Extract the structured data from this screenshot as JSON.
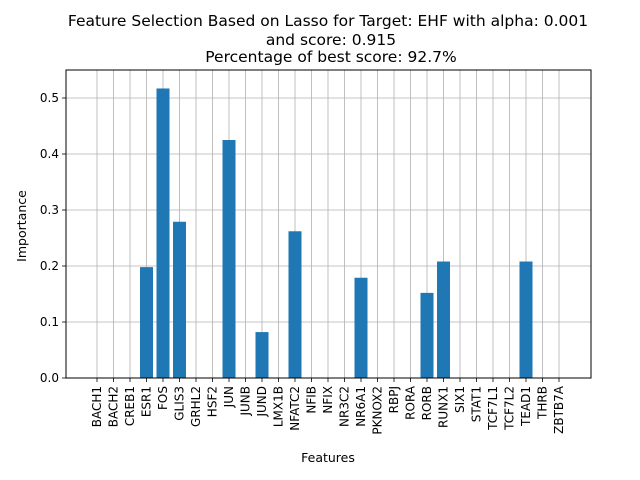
{
  "chart_data": {
    "type": "bar",
    "title": [
      "Feature Selection Based on Lasso for Target: EHF with alpha: 0.001",
      "and score: 0.915",
      "Percentage of best score: 92.7%"
    ],
    "xlabel": "Features",
    "ylabel": "Importance",
    "ylim": [
      0,
      0.55
    ],
    "yticks": [
      "0.0",
      "0.1",
      "0.2",
      "0.3",
      "0.4",
      "0.5"
    ],
    "grid": true,
    "bar_color": "#1f77b4",
    "categories": [
      "BACH1",
      "BACH2",
      "CREB1",
      "ESR1",
      "FOS",
      "GLIS3",
      "GRHL2",
      "HSF2",
      "JUN",
      "JUNB",
      "JUND",
      "LMX1B",
      "NFATC2",
      "NFIB",
      "NFIX",
      "NR3C2",
      "NR6A1",
      "PKNOX2",
      "RBPJ",
      "RORA",
      "RORB",
      "RUNX1",
      "SIX1",
      "STAT1",
      "TCF7L1",
      "TCF7L2",
      "TEAD1",
      "THRB",
      "ZBTB7A"
    ],
    "values": [
      0,
      0,
      0,
      0.198,
      0.517,
      0.279,
      0,
      0,
      0.425,
      0,
      0.082,
      0,
      0.262,
      0,
      0,
      0,
      0.179,
      0,
      0,
      0,
      0.152,
      0.208,
      0,
      0,
      0,
      0,
      0.208,
      0,
      0
    ]
  }
}
